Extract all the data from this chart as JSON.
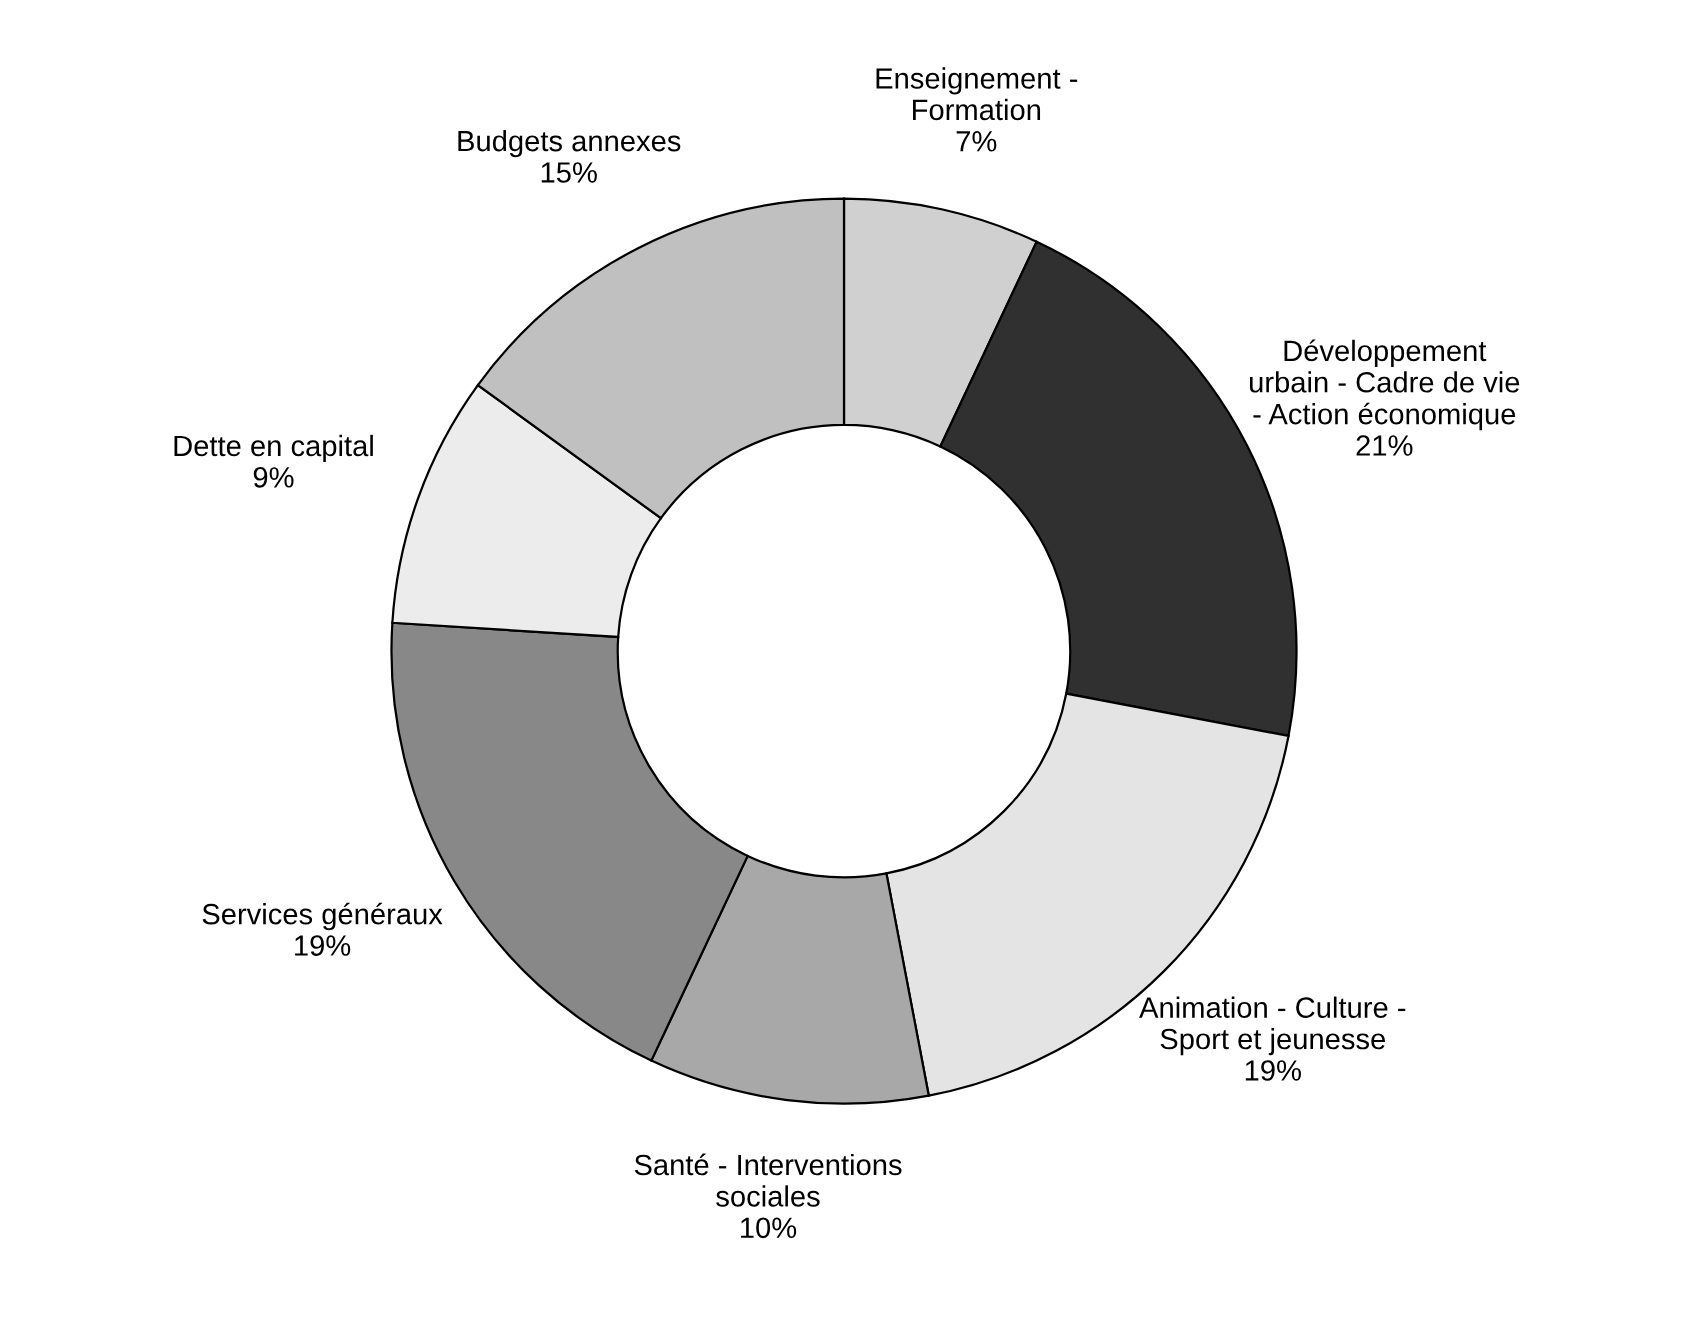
{
  "chart_data": {
    "type": "donut",
    "categories": [
      "Enseignement -\nFormation",
      "Développement\nurbain - Cadre de vie\n- Action économique",
      "Animation - Culture -\nSport et jeunesse",
      "Santé - Interventions\nsociales",
      "Services généraux",
      "Dette en capital",
      "Budgets annexes"
    ],
    "values": [
      7,
      21,
      19,
      10,
      19,
      9,
      15
    ],
    "value_labels": [
      "7%",
      "21%",
      "19%",
      "10%",
      "19%",
      "9%",
      "15%"
    ],
    "colors": [
      "#d0d0d0",
      "#303030",
      "#e4e4e4",
      "#a8a8a8",
      "#888888",
      "#ececec",
      "#c0c0c0"
    ],
    "legend": false
  }
}
